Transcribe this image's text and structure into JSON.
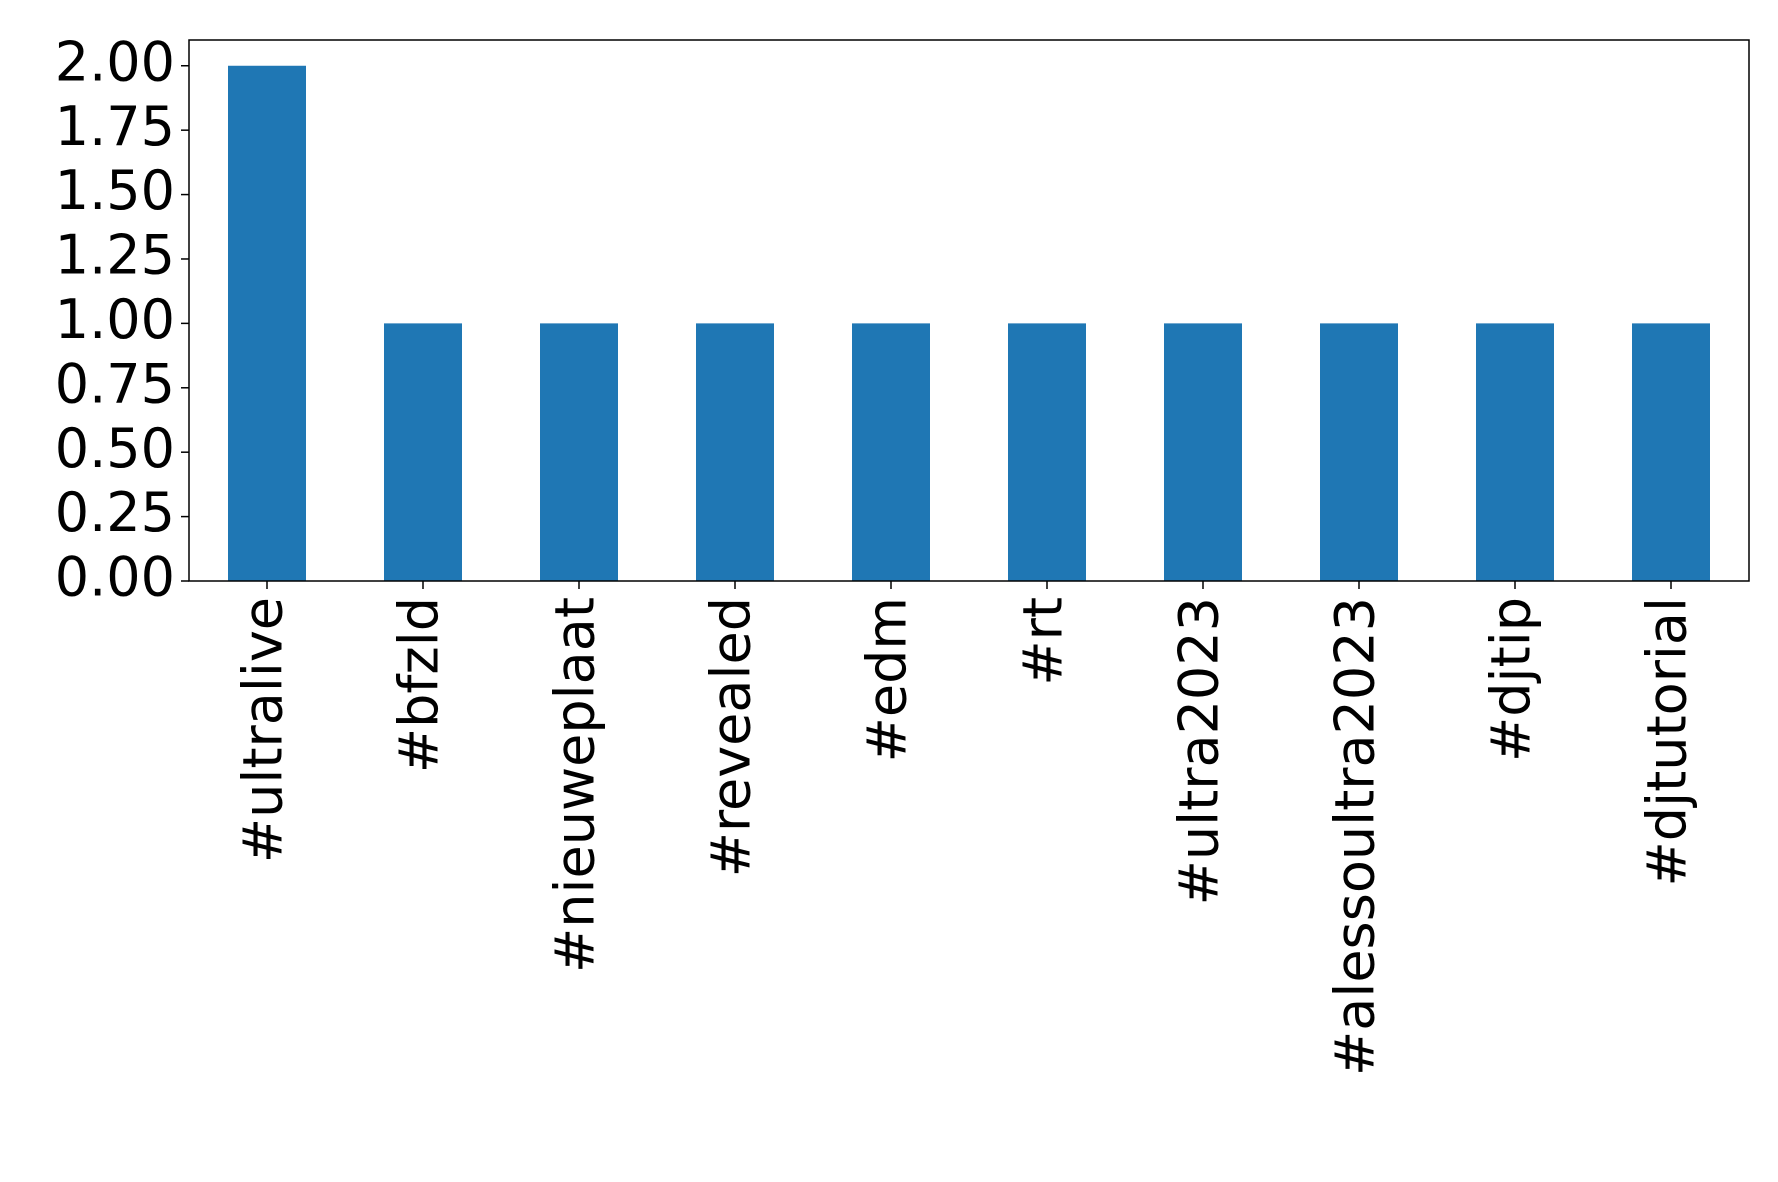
{
  "chart_data": {
    "type": "bar",
    "categories": [
      "#ultralive",
      "#bfzld",
      "#nieuweplaat",
      "#revealed",
      "#edm",
      "#rt",
      "#ultra2023",
      "#alessoultra2023",
      "#djtip",
      "#djtutorial"
    ],
    "values": [
      2,
      1,
      1,
      1,
      1,
      1,
      1,
      1,
      1,
      1
    ],
    "color": "#1f77b4",
    "ylim": [
      0,
      2.1
    ],
    "yticks": [
      {
        "value": 0,
        "label": "0.00"
      },
      {
        "value": 0.25,
        "label": "0.25"
      },
      {
        "value": 0.5,
        "label": "0.50"
      },
      {
        "value": 0.75,
        "label": "0.75"
      },
      {
        "value": 1,
        "label": "1.00"
      },
      {
        "value": 1.25,
        "label": "1.25"
      },
      {
        "value": 1.5,
        "label": "1.50"
      },
      {
        "value": 1.75,
        "label": "1.75"
      },
      {
        "value": 2,
        "label": "2.00"
      }
    ],
    "grid": false
  }
}
